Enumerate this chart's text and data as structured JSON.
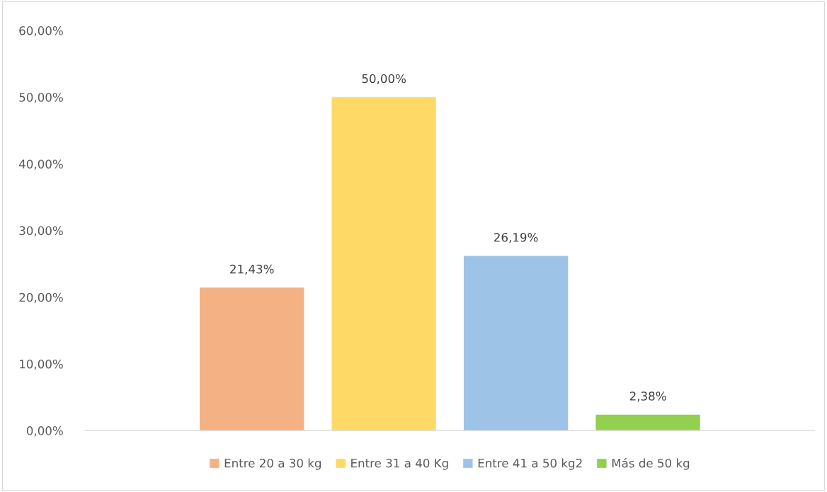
{
  "chart_data": {
    "type": "bar",
    "categories": [
      null
    ],
    "series": [
      {
        "name": "Entre 20 a 30 kg",
        "color": "#f4b183",
        "values": [
          21.43
        ],
        "value_labels": [
          "21,43%"
        ]
      },
      {
        "name": "Entre 31 a 40 Kg",
        "color": "#ffd966",
        "values": [
          50.0
        ],
        "value_labels": [
          "50,00%"
        ]
      },
      {
        "name": "Entre 41 a 50 kg2",
        "color": "#9dc3e6",
        "values": [
          26.19
        ],
        "value_labels": [
          "26,19%"
        ]
      },
      {
        "name": "Más de 50 kg",
        "color": "#92d050",
        "values": [
          2.38
        ],
        "value_labels": [
          "2,38%"
        ]
      }
    ],
    "ylim": [
      0,
      60
    ],
    "yticks": [
      {
        "value": 0,
        "label": "0,00%"
      },
      {
        "value": 10,
        "label": "10,00%"
      },
      {
        "value": 20,
        "label": "20,00%"
      },
      {
        "value": 30,
        "label": "30,00%"
      },
      {
        "value": 40,
        "label": "40,00%"
      },
      {
        "value": 50,
        "label": "50,00%"
      },
      {
        "value": 60,
        "label": "60,00%"
      }
    ],
    "grid": false,
    "legend": "bottom"
  }
}
